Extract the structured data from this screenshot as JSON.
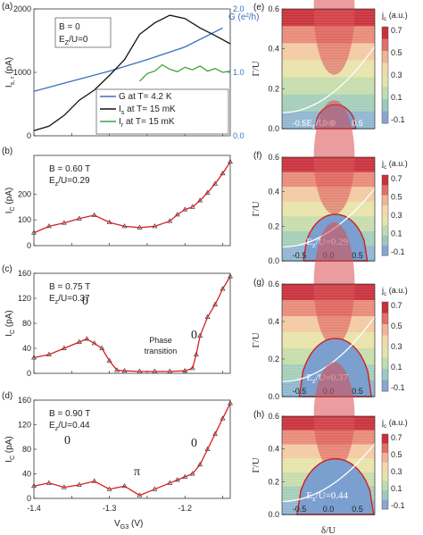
{
  "chart_data": [
    {
      "panel": "(a)",
      "type": "line",
      "ylabel": "I",
      "ylabel_sub": "s, r",
      "ylabel_unit": "(pA)",
      "ylim": [
        0,
        2000
      ],
      "yticks": [
        "0",
        "1000",
        "2000"
      ],
      "ylabel_right": "G (e²/h)",
      "ylim_right": [
        0,
        2.0
      ],
      "yticks_right": [
        "0.0",
        "1.0",
        "2.0"
      ],
      "annotation_1": "B = 0",
      "annotation_2": "E",
      "annotation_2_sub": "Z",
      "annotation_2_rest": "/U=0",
      "series": [
        {
          "name": "G at T= 4.2 K",
          "color": "#3a6fc0",
          "axis": "right",
          "x": [
            -1.4,
            -1.35,
            -1.3,
            -1.25,
            -1.2,
            -1.15
          ],
          "y": [
            0.7,
            0.86,
            1.02,
            1.2,
            1.4,
            1.7
          ]
        },
        {
          "name": "I",
          "sub": "s",
          "rest": " at T= 15 mK",
          "color": "#111111",
          "axis": "left",
          "x": [
            -1.4,
            -1.38,
            -1.36,
            -1.34,
            -1.32,
            -1.3,
            -1.28,
            -1.26,
            -1.24,
            -1.22,
            -1.2,
            -1.18,
            -1.16,
            -1.14
          ],
          "y": [
            80,
            150,
            320,
            560,
            720,
            950,
            1200,
            1600,
            1780,
            1900,
            1850,
            1700,
            1580,
            1450
          ]
        },
        {
          "name": "I",
          "sub": "r",
          "rest": " at T= 15 mK",
          "color": "#3aa53a",
          "axis": "left",
          "x": [
            -1.26,
            -1.25,
            -1.24,
            -1.23,
            -1.22,
            -1.21,
            -1.2,
            -1.19,
            -1.18,
            -1.17,
            -1.16,
            -1.15,
            -1.14
          ],
          "y": [
            860,
            980,
            1020,
            1120,
            1050,
            1010,
            1080,
            1040,
            1100,
            1020,
            1060,
            1000,
            1020
          ]
        }
      ]
    },
    {
      "panel": "(b)",
      "type": "line",
      "ylabel": "I",
      "ylabel_sub": "C",
      "ylabel_unit": "(pA)",
      "ylim": [
        0,
        350
      ],
      "yticks": [
        "0",
        "100",
        "200"
      ],
      "annotation_1": "B = 0.60 T",
      "annotation_2": "E",
      "annotation_2_sub": "z",
      "annotation_2_rest": "/U=0.29",
      "series": [
        {
          "color": "#d62020",
          "x": [
            -1.4,
            -1.38,
            -1.36,
            -1.34,
            -1.32,
            -1.3,
            -1.28,
            -1.26,
            -1.24,
            -1.22,
            -1.21,
            -1.2,
            -1.19,
            -1.18,
            -1.17,
            -1.16,
            -1.15,
            -1.14
          ],
          "y": [
            50,
            75,
            88,
            105,
            118,
            90,
            75,
            70,
            75,
            95,
            120,
            140,
            150,
            175,
            205,
            240,
            280,
            325
          ]
        }
      ]
    },
    {
      "panel": "(c)",
      "type": "line",
      "ylabel": "I",
      "ylabel_sub": "C",
      "ylabel_unit": "(pA)",
      "ylim": [
        0,
        160
      ],
      "yticks": [
        "0",
        "40",
        "80",
        "120",
        "160"
      ],
      "annotation_1": "B = 0.75 T",
      "annotation_2": "E",
      "annotation_2_sub": "z",
      "annotation_2_rest": "/U=0.37",
      "label_left": "0",
      "label_right": "0",
      "label_mid_1": "Phase",
      "label_mid_2": "transition",
      "series": [
        {
          "color": "#d62020",
          "x": [
            -1.4,
            -1.38,
            -1.36,
            -1.34,
            -1.33,
            -1.32,
            -1.31,
            -1.3,
            -1.29,
            -1.28,
            -1.26,
            -1.24,
            -1.22,
            -1.2,
            -1.19,
            -1.185,
            -1.18,
            -1.17,
            -1.16,
            -1.15,
            -1.14
          ],
          "y": [
            25,
            30,
            40,
            50,
            55,
            48,
            40,
            20,
            5,
            4,
            3,
            3,
            3,
            4,
            8,
            30,
            60,
            90,
            110,
            135,
            155
          ]
        }
      ]
    },
    {
      "panel": "(d)",
      "type": "line",
      "ylabel": "I",
      "ylabel_sub": "C",
      "ylabel_unit": "(pA)",
      "ylim": [
        0,
        160
      ],
      "yticks": [
        "0",
        "40",
        "80",
        "120",
        "160"
      ],
      "xlim": [
        -1.4,
        -1.14
      ],
      "xticks": [
        "-1.4",
        "-1.3",
        "-1.2"
      ],
      "xlabel": "V",
      "xlabel_sub": "G3",
      "xlabel_unit": " (V)",
      "annotation_1": "B = 0.90 T",
      "annotation_2": "E",
      "annotation_2_sub": "z",
      "annotation_2_rest": "/U=0.44",
      "label_left": "0",
      "label_mid": "π",
      "label_right": "0",
      "series": [
        {
          "color": "#d62020",
          "x": [
            -1.4,
            -1.38,
            -1.36,
            -1.34,
            -1.32,
            -1.3,
            -1.28,
            -1.26,
            -1.24,
            -1.22,
            -1.21,
            -1.2,
            -1.19,
            -1.18,
            -1.17,
            -1.16,
            -1.15,
            -1.14
          ],
          "y": [
            20,
            25,
            18,
            22,
            28,
            15,
            20,
            5,
            15,
            25,
            30,
            35,
            40,
            55,
            80,
            105,
            130,
            155
          ]
        }
      ]
    },
    {
      "panel": "(e)",
      "type": "heatmap",
      "xlim": [
        -0.8,
        0.8
      ],
      "ylim": [
        0,
        0.6
      ],
      "yticks": [
        "0.0",
        "0.2",
        "0.4",
        "0.6"
      ],
      "ylabel": "Γ/U",
      "xticks": [
        "-0.5",
        "0.0",
        "0.5"
      ],
      "overlay_label": "E",
      "overlay_sub": "z",
      "overlay_rest": "/U=0",
      "phase_peak": 0.12,
      "phase_halfwidth": 0.35,
      "colorbar_title": "j",
      "colorbar_sub": "c",
      "colorbar_unit": " (a.u.)",
      "colorbar_ticks": [
        "0.7",
        "0.5",
        "0.3",
        "0.1",
        "-0.1"
      ]
    },
    {
      "panel": "(f)",
      "type": "heatmap",
      "xlim": [
        -0.8,
        0.8
      ],
      "ylim": [
        0,
        0.6
      ],
      "yticks": [
        "0.0",
        "0.2",
        "0.4",
        "0.6"
      ],
      "ylabel": "Γ/U",
      "xticks": [
        "-0.5",
        "0.0",
        "0.5"
      ],
      "overlay_label": "E",
      "overlay_sub": "z",
      "overlay_rest": "/U=0.29",
      "phase_peak": 0.27,
      "phase_halfwidth": 0.55,
      "colorbar_title": "j",
      "colorbar_sub": "c",
      "colorbar_unit": " (a.u.)",
      "colorbar_ticks": [
        "0.7",
        "0.5",
        "0.3",
        "0.1",
        "-0.1"
      ]
    },
    {
      "panel": "(g)",
      "type": "heatmap",
      "xlim": [
        -0.8,
        0.8
      ],
      "ylim": [
        0,
        0.6
      ],
      "yticks": [
        "0.0",
        "0.2",
        "0.4",
        "0.6"
      ],
      "ylabel": "Γ/U",
      "xticks": [
        "-0.5",
        "0.0",
        "0.5"
      ],
      "overlay_label": "E",
      "overlay_sub": "z",
      "overlay_rest": "/U=0.37",
      "phase_peak": 0.31,
      "phase_halfwidth": 0.62,
      "colorbar_title": "j",
      "colorbar_sub": "c",
      "colorbar_unit": " (a.u.)",
      "colorbar_ticks": [
        "0.7",
        "0.5",
        "0.3",
        "0.1",
        "-0.1"
      ]
    },
    {
      "panel": "(h)",
      "type": "heatmap",
      "xlim": [
        -0.8,
        0.8
      ],
      "ylim": [
        0,
        0.6
      ],
      "yticks": [
        "0.0",
        "0.2",
        "0.4",
        "0.6"
      ],
      "ylabel": "Γ/U",
      "xticks": [
        "-0.5",
        "0.0",
        "0.5"
      ],
      "xlabel": "δ/U",
      "overlay_label": "E",
      "overlay_sub": "z",
      "overlay_rest": "/U=0.44",
      "phase_peak": 0.34,
      "phase_halfwidth": 0.66,
      "colorbar_title": "j",
      "colorbar_sub": "c",
      "colorbar_unit": " (a.u.)",
      "colorbar_ticks": [
        "0.7",
        "0.5",
        "0.3",
        "0.1",
        "-0.1"
      ]
    }
  ]
}
